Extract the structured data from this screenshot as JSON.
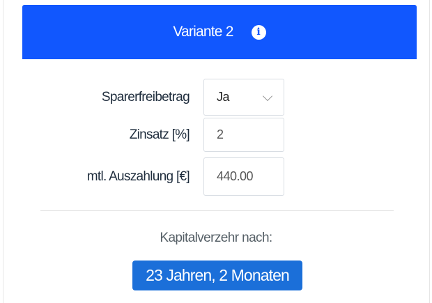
{
  "header": {
    "title": "Variante 2",
    "info_icon": "info-circle-icon",
    "color": "#1157fe"
  },
  "form": {
    "sparerfreibetrag": {
      "label": "Sparerfreibetrag",
      "value": "Ja"
    },
    "zinsatz": {
      "label": "Zinsatz [%]",
      "value": "2"
    },
    "auszahlung": {
      "label": "mtl. Auszahlung [€]",
      "value": "440.00"
    }
  },
  "result": {
    "label": "Kapitalverzehr nach:",
    "value": "23 Jahren, 2 Monaten",
    "color": "#1b6fd9"
  }
}
